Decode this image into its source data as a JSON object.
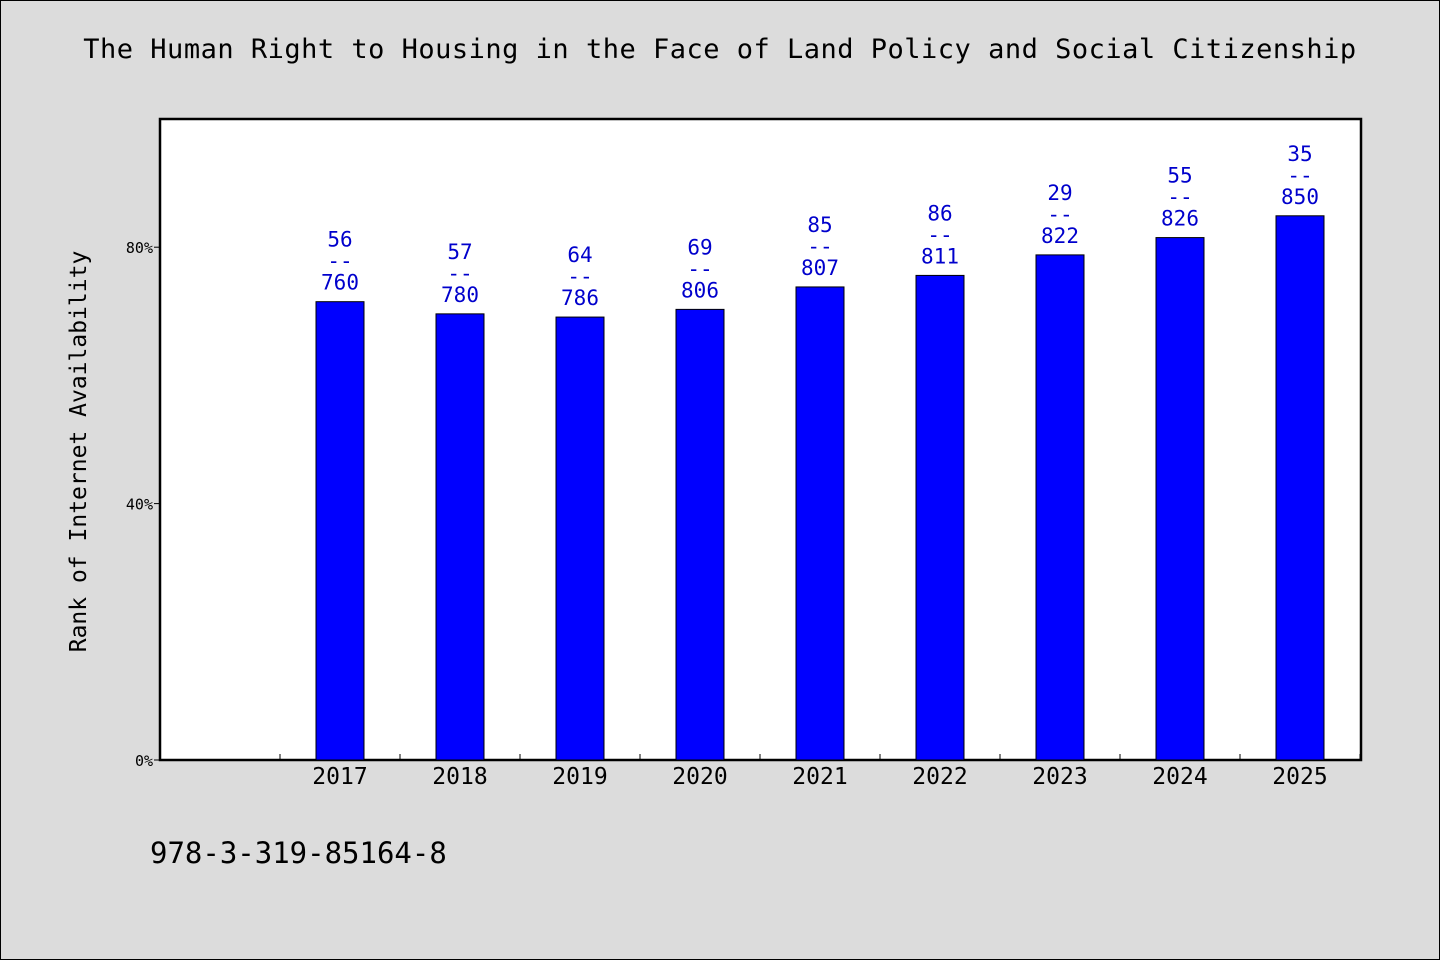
{
  "chart_data": {
    "type": "bar",
    "title": "The Human Right to Housing in the Face of Land Policy and Social Citizenship",
    "xlabel": "",
    "ylabel": "Rank of Internet Availability",
    "categories": [
      "2017",
      "2018",
      "2019",
      "2020",
      "2021",
      "2022",
      "2023",
      "2024",
      "2025"
    ],
    "series": [
      {
        "values": [
          71.5,
          69.6,
          69.1,
          70.3,
          73.8,
          75.6,
          78.8,
          81.5,
          84.9
        ],
        "labels": [
          [
            "56",
            "--",
            "760"
          ],
          [
            "57",
            "--",
            "780"
          ],
          [
            "64",
            "--",
            "786"
          ],
          [
            "69",
            "--",
            "806"
          ],
          [
            "85",
            "--",
            "807"
          ],
          [
            "86",
            "--",
            "811"
          ],
          [
            "29",
            "--",
            "822"
          ],
          [
            "55",
            "--",
            "826"
          ],
          [
            "35",
            "--",
            "850"
          ]
        ]
      }
    ],
    "yticks": [
      0,
      40,
      80
    ],
    "ytick_labels": [
      "0%",
      "40%",
      "80%"
    ],
    "ylim": [
      0,
      100
    ],
    "bar_color": "#0000ff",
    "label_color": "#0000cc",
    "grid": false,
    "legend": "none"
  },
  "footer": {
    "code": "978-3-319-85164-8"
  }
}
